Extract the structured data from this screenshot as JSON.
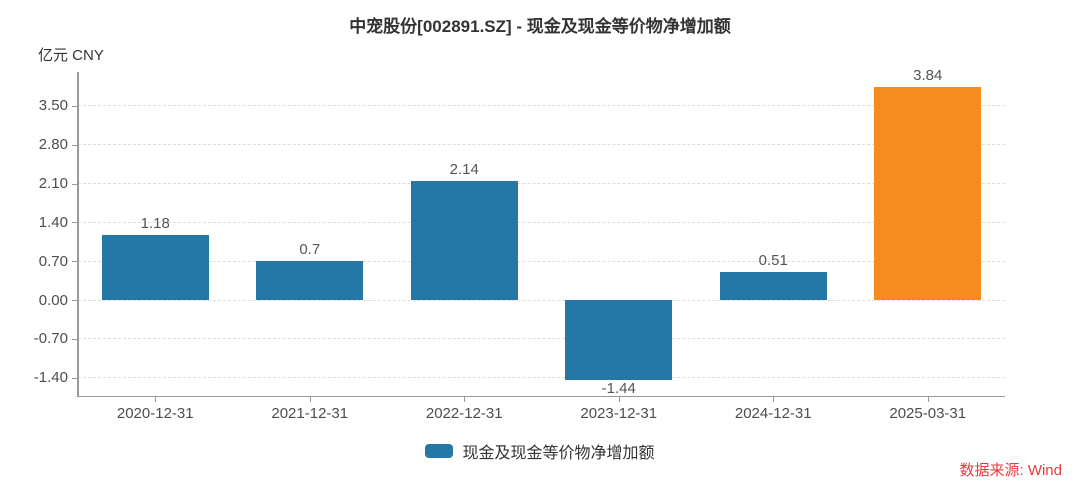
{
  "footer": {
    "source_label": "数据来源: Wind"
  },
  "colors": {
    "bar_default": "#2578A5",
    "bar_highlight": "#F68B1F",
    "grid": "#DDDDDD",
    "axis": "#999999",
    "title_text": "#333333",
    "tick_text": "#4D4D4D",
    "source_text": "#E83A3A"
  },
  "chart_data": {
    "type": "bar",
    "title": "中宠股份[002891.SZ] - 现金及现金等价物净增加额",
    "unit": "亿元 CNY",
    "categories": [
      "2020-12-31",
      "2021-12-31",
      "2022-12-31",
      "2023-12-31",
      "2024-12-31",
      "2025-03-31"
    ],
    "series": [
      {
        "name": "现金及现金等价物净增加额",
        "values": [
          1.18,
          0.7,
          2.14,
          -1.44,
          0.51,
          3.84
        ],
        "labels": [
          "1.18",
          "0.7",
          "2.14",
          "-1.44",
          "0.51",
          "3.84"
        ],
        "colors": [
          "#2578A5",
          "#2578A5",
          "#2578A5",
          "#2578A5",
          "#2578A5",
          "#F68B1F"
        ]
      }
    ],
    "ytick_labels": [
      "3.50",
      "2.80",
      "2.10",
      "1.40",
      "0.70",
      "0.00",
      "-0.70",
      "-1.40"
    ],
    "ylim": [
      -1.73,
      4.11
    ],
    "grid": true,
    "gridline_style": "dashed",
    "legend_position": "bottom"
  }
}
